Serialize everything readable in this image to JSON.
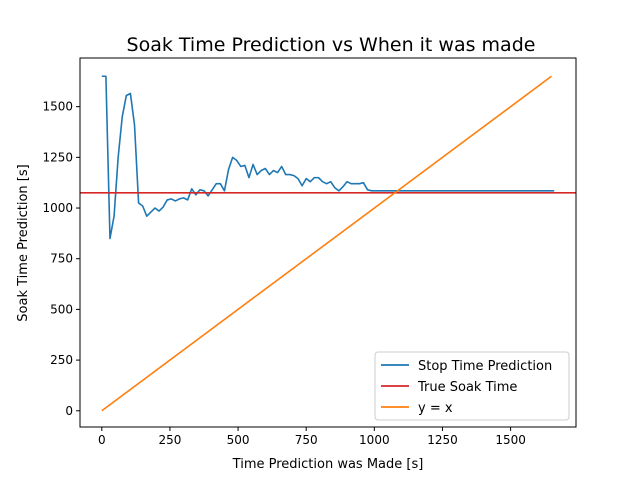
{
  "chart_data": {
    "type": "line",
    "title": "Soak Time Prediction vs When it was made",
    "xlabel": "Time Prediction was Made [s]",
    "ylabel": "Soak Time Prediction [s]",
    "xlim": [
      -80,
      1740
    ],
    "ylim": [
      -80,
      1740
    ],
    "xticks": [
      0,
      250,
      500,
      750,
      1000,
      1250,
      1500
    ],
    "yticks": [
      0,
      250,
      500,
      750,
      1000,
      1250,
      1500
    ],
    "legend_position": "lower-right",
    "grid": false,
    "series": [
      {
        "name": "Stop Time Prediction",
        "kind": "line",
        "color": "#1f77b4",
        "x": [
          0,
          15,
          30,
          45,
          60,
          75,
          90,
          105,
          120,
          135,
          150,
          165,
          180,
          195,
          210,
          225,
          240,
          255,
          270,
          285,
          300,
          315,
          330,
          345,
          360,
          375,
          390,
          405,
          420,
          435,
          450,
          465,
          480,
          495,
          510,
          525,
          540,
          555,
          570,
          585,
          600,
          615,
          630,
          645,
          660,
          675,
          690,
          705,
          720,
          735,
          750,
          765,
          780,
          795,
          810,
          825,
          840,
          855,
          870,
          885,
          900,
          915,
          930,
          945,
          960,
          975,
          990,
          1005,
          1020,
          1035,
          1050,
          1065,
          1080,
          1095,
          1110,
          1200,
          1300,
          1400,
          1500,
          1600,
          1660
        ],
        "y": [
          1650,
          1650,
          850,
          960,
          1250,
          1450,
          1555,
          1565,
          1410,
          1025,
          1010,
          960,
          980,
          1000,
          985,
          1005,
          1040,
          1045,
          1035,
          1045,
          1050,
          1040,
          1095,
          1065,
          1090,
          1085,
          1060,
          1090,
          1120,
          1120,
          1085,
          1190,
          1250,
          1235,
          1205,
          1210,
          1150,
          1215,
          1165,
          1185,
          1195,
          1165,
          1185,
          1175,
          1205,
          1165,
          1165,
          1160,
          1145,
          1110,
          1145,
          1130,
          1150,
          1150,
          1130,
          1120,
          1130,
          1100,
          1085,
          1105,
          1130,
          1120,
          1120,
          1120,
          1125,
          1090,
          1085,
          1085,
          1085,
          1085,
          1085,
          1085,
          1085,
          1085,
          1085,
          1085,
          1085,
          1085,
          1085,
          1085,
          1085
        ]
      },
      {
        "name": "True Soak Time",
        "kind": "hline",
        "color": "#d62728",
        "y": 1075
      },
      {
        "name": "y = x",
        "kind": "line",
        "color": "#ff7f0e",
        "x": [
          0,
          1650
        ],
        "y": [
          0,
          1650
        ]
      }
    ]
  }
}
